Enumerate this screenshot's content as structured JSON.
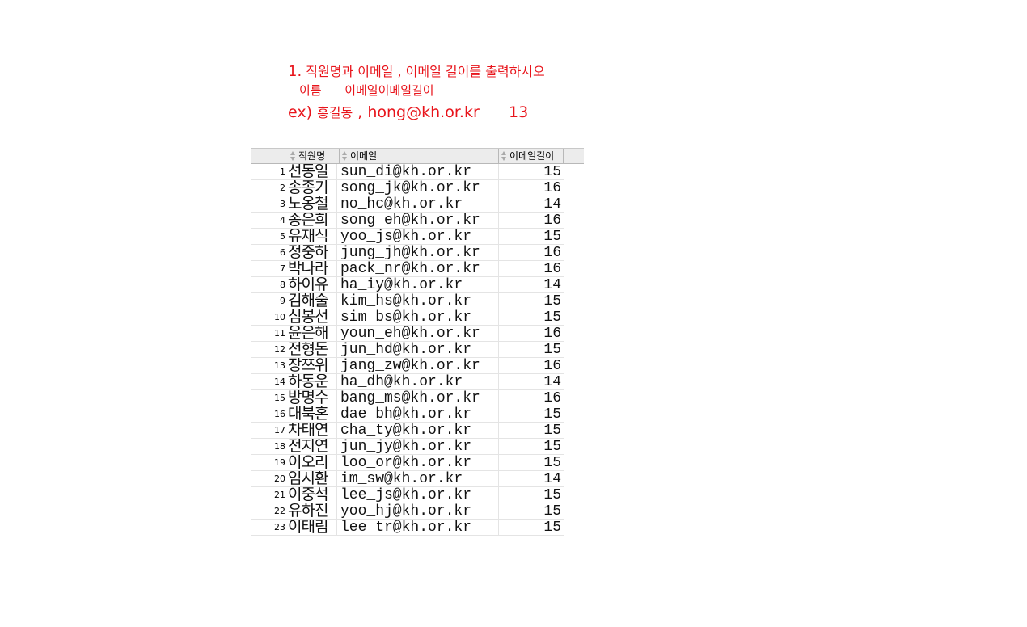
{
  "instructions": {
    "line1_num": "1.",
    "line1_text": "직원명과 이메일 , 이메일 길이를 출력하시오",
    "line2": "이름      이메일이메일길이",
    "line3_ex": "ex)",
    "line3_name": "홍길동",
    "line3_rest": " , hong@kh.or.kr      13"
  },
  "grid": {
    "columns": [
      "직원명",
      "이메일",
      "이메일길이"
    ],
    "rows": [
      {
        "num": "1",
        "name": "선동일",
        "email": "sun_di@kh.or.kr",
        "len": "15"
      },
      {
        "num": "2",
        "name": "송종기",
        "email": "song_jk@kh.or.kr",
        "len": "16"
      },
      {
        "num": "3",
        "name": "노옹철",
        "email": "no_hc@kh.or.kr",
        "len": "14"
      },
      {
        "num": "4",
        "name": "송은희",
        "email": "song_eh@kh.or.kr",
        "len": "16"
      },
      {
        "num": "5",
        "name": "유재식",
        "email": "yoo_js@kh.or.kr",
        "len": "15"
      },
      {
        "num": "6",
        "name": "정중하",
        "email": "jung_jh@kh.or.kr",
        "len": "16"
      },
      {
        "num": "7",
        "name": "박나라",
        "email": "pack_nr@kh.or.kr",
        "len": "16"
      },
      {
        "num": "8",
        "name": "하이유",
        "email": "ha_iy@kh.or.kr",
        "len": "14"
      },
      {
        "num": "9",
        "name": "김해술",
        "email": "kim_hs@kh.or.kr",
        "len": "15"
      },
      {
        "num": "10",
        "name": "심봉선",
        "email": "sim_bs@kh.or.kr",
        "len": "15"
      },
      {
        "num": "11",
        "name": "윤은해",
        "email": "youn_eh@kh.or.kr",
        "len": "16"
      },
      {
        "num": "12",
        "name": "전형돈",
        "email": "jun_hd@kh.or.kr",
        "len": "15"
      },
      {
        "num": "13",
        "name": "장쯔위",
        "email": "jang_zw@kh.or.kr",
        "len": "16"
      },
      {
        "num": "14",
        "name": "하동운",
        "email": "ha_dh@kh.or.kr",
        "len": "14"
      },
      {
        "num": "15",
        "name": "방명수",
        "email": "bang_ms@kh.or.kr",
        "len": "16"
      },
      {
        "num": "16",
        "name": "대북혼",
        "email": "dae_bh@kh.or.kr",
        "len": "15"
      },
      {
        "num": "17",
        "name": "차태연",
        "email": "cha_ty@kh.or.kr",
        "len": "15"
      },
      {
        "num": "18",
        "name": "전지연",
        "email": "jun_jy@kh.or.kr",
        "len": "15"
      },
      {
        "num": "19",
        "name": "이오리",
        "email": "loo_or@kh.or.kr",
        "len": "15"
      },
      {
        "num": "20",
        "name": "임시환",
        "email": "im_sw@kh.or.kr",
        "len": "14"
      },
      {
        "num": "21",
        "name": "이중석",
        "email": "lee_js@kh.or.kr",
        "len": "15"
      },
      {
        "num": "22",
        "name": "유하진",
        "email": "yoo_hj@kh.or.kr",
        "len": "15"
      },
      {
        "num": "23",
        "name": "이태림",
        "email": "lee_tr@kh.or.kr",
        "len": "15"
      }
    ]
  }
}
